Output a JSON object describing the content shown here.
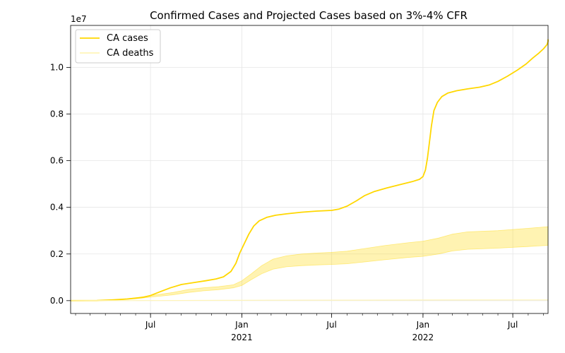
{
  "chart_data": {
    "type": "line",
    "title": "Confirmed Cases and Projected Cases based on 3%-4% CFR",
    "y_offset_label": "1e7",
    "xlabel": "",
    "ylabel": "",
    "xlim": [
      "2020-01-22",
      "2022-09-10"
    ],
    "ylim": [
      -0.055,
      1.18
    ],
    "grid": true,
    "legend_position": "upper-left",
    "x_ticks": [
      {
        "date": "2020-07-01",
        "label": "Jul",
        "sublabel": ""
      },
      {
        "date": "2021-01-01",
        "label": "Jan",
        "sublabel": "2021"
      },
      {
        "date": "2021-07-01",
        "label": "Jul",
        "sublabel": ""
      },
      {
        "date": "2022-01-01",
        "label": "Jan",
        "sublabel": "2022"
      },
      {
        "date": "2022-07-01",
        "label": "Jul",
        "sublabel": ""
      }
    ],
    "y_ticks": [
      {
        "value": 0.0,
        "label": "0.0"
      },
      {
        "value": 0.2,
        "label": "0.2"
      },
      {
        "value": 0.4,
        "label": "0.4"
      },
      {
        "value": 0.6,
        "label": "0.6"
      },
      {
        "value": 0.8,
        "label": "0.8"
      },
      {
        "value": 1.0,
        "label": "1.0"
      }
    ],
    "series": [
      {
        "name": "CA cases",
        "color": "#ffd700",
        "points": [
          [
            "2020-01-22",
            0.0
          ],
          [
            "2020-03-15",
            0.0005
          ],
          [
            "2020-04-15",
            0.003
          ],
          [
            "2020-05-15",
            0.007
          ],
          [
            "2020-06-15",
            0.014
          ],
          [
            "2020-07-01",
            0.022
          ],
          [
            "2020-07-20",
            0.038
          ],
          [
            "2020-08-10",
            0.055
          ],
          [
            "2020-09-01",
            0.069
          ],
          [
            "2020-09-25",
            0.077
          ],
          [
            "2020-10-20",
            0.085
          ],
          [
            "2020-11-10",
            0.093
          ],
          [
            "2020-11-25",
            0.102
          ],
          [
            "2020-12-10",
            0.125
          ],
          [
            "2020-12-20",
            0.16
          ],
          [
            "2020-12-28",
            0.205
          ],
          [
            "2021-01-05",
            0.24
          ],
          [
            "2021-01-15",
            0.285
          ],
          [
            "2021-01-25",
            0.32
          ],
          [
            "2021-02-05",
            0.342
          ],
          [
            "2021-02-20",
            0.357
          ],
          [
            "2021-03-10",
            0.366
          ],
          [
            "2021-04-01",
            0.372
          ],
          [
            "2021-05-01",
            0.379
          ],
          [
            "2021-06-01",
            0.384
          ],
          [
            "2021-07-01",
            0.387
          ],
          [
            "2021-07-15",
            0.392
          ],
          [
            "2021-08-01",
            0.405
          ],
          [
            "2021-08-20",
            0.428
          ],
          [
            "2021-09-05",
            0.45
          ],
          [
            "2021-09-25",
            0.468
          ],
          [
            "2021-10-20",
            0.483
          ],
          [
            "2021-11-15",
            0.497
          ],
          [
            "2021-12-10",
            0.51
          ],
          [
            "2021-12-25",
            0.52
          ],
          [
            "2022-01-01",
            0.532
          ],
          [
            "2022-01-06",
            0.56
          ],
          [
            "2022-01-10",
            0.61
          ],
          [
            "2022-01-14",
            0.68
          ],
          [
            "2022-01-18",
            0.75
          ],
          [
            "2022-01-23",
            0.815
          ],
          [
            "2022-01-30",
            0.85
          ],
          [
            "2022-02-08",
            0.875
          ],
          [
            "2022-02-20",
            0.89
          ],
          [
            "2022-03-10",
            0.9
          ],
          [
            "2022-04-01",
            0.908
          ],
          [
            "2022-04-25",
            0.915
          ],
          [
            "2022-05-15",
            0.925
          ],
          [
            "2022-06-01",
            0.94
          ],
          [
            "2022-06-20",
            0.962
          ],
          [
            "2022-07-10",
            0.988
          ],
          [
            "2022-07-28",
            1.015
          ],
          [
            "2022-08-10",
            1.04
          ],
          [
            "2022-08-22",
            1.06
          ],
          [
            "2022-09-01",
            1.08
          ],
          [
            "2022-09-08",
            1.098
          ],
          [
            "2022-09-10",
            1.112
          ],
          [
            "2022-09-15",
            1.12
          ]
        ]
      },
      {
        "name": "CA deaths",
        "color": "#fff5b8",
        "points": [
          [
            "2020-01-22",
            0.0
          ],
          [
            "2020-06-01",
            0.0005
          ],
          [
            "2020-12-01",
            0.0012
          ],
          [
            "2021-03-01",
            0.0018
          ],
          [
            "2021-09-01",
            0.0022
          ],
          [
            "2022-03-01",
            0.0027
          ],
          [
            "2022-09-15",
            0.003
          ]
        ]
      }
    ],
    "projection_band": {
      "name": "Projected cases (3%-4% CFR)",
      "color": "#ffd700",
      "opacity": 0.3,
      "lower": [
        [
          "2020-01-22",
          0.0
        ],
        [
          "2020-04-15",
          0.001
        ],
        [
          "2020-06-01",
          0.008
        ],
        [
          "2020-07-01",
          0.015
        ],
        [
          "2020-08-15",
          0.025
        ],
        [
          "2020-09-15",
          0.035
        ],
        [
          "2020-10-15",
          0.042
        ],
        [
          "2020-11-15",
          0.047
        ],
        [
          "2020-12-15",
          0.055
        ],
        [
          "2021-01-01",
          0.065
        ],
        [
          "2021-01-20",
          0.09
        ],
        [
          "2021-02-10",
          0.115
        ],
        [
          "2021-03-05",
          0.135
        ],
        [
          "2021-04-01",
          0.145
        ],
        [
          "2021-05-01",
          0.15
        ],
        [
          "2021-06-01",
          0.153
        ],
        [
          "2021-07-01",
          0.155
        ],
        [
          "2021-08-01",
          0.158
        ],
        [
          "2021-09-01",
          0.165
        ],
        [
          "2021-10-15",
          0.175
        ],
        [
          "2021-12-01",
          0.185
        ],
        [
          "2022-01-01",
          0.19
        ],
        [
          "2022-02-01",
          0.2
        ],
        [
          "2022-03-01",
          0.213
        ],
        [
          "2022-04-01",
          0.22
        ],
        [
          "2022-06-01",
          0.225
        ],
        [
          "2022-08-01",
          0.232
        ],
        [
          "2022-09-15",
          0.237
        ]
      ],
      "upper": [
        [
          "2020-01-22",
          0.0
        ],
        [
          "2020-04-15",
          0.002
        ],
        [
          "2020-06-01",
          0.012
        ],
        [
          "2020-07-01",
          0.022
        ],
        [
          "2020-08-15",
          0.035
        ],
        [
          "2020-09-15",
          0.048
        ],
        [
          "2020-10-15",
          0.055
        ],
        [
          "2020-11-15",
          0.06
        ],
        [
          "2020-12-15",
          0.068
        ],
        [
          "2021-01-01",
          0.085
        ],
        [
          "2021-01-20",
          0.115
        ],
        [
          "2021-02-10",
          0.15
        ],
        [
          "2021-03-05",
          0.178
        ],
        [
          "2021-04-01",
          0.192
        ],
        [
          "2021-05-01",
          0.2
        ],
        [
          "2021-06-01",
          0.204
        ],
        [
          "2021-07-01",
          0.207
        ],
        [
          "2021-08-01",
          0.212
        ],
        [
          "2021-09-01",
          0.222
        ],
        [
          "2021-10-15",
          0.236
        ],
        [
          "2021-12-01",
          0.248
        ],
        [
          "2022-01-01",
          0.255
        ],
        [
          "2022-02-01",
          0.268
        ],
        [
          "2022-03-01",
          0.285
        ],
        [
          "2022-04-01",
          0.295
        ],
        [
          "2022-06-01",
          0.3
        ],
        [
          "2022-08-01",
          0.31
        ],
        [
          "2022-09-15",
          0.317
        ]
      ]
    }
  }
}
